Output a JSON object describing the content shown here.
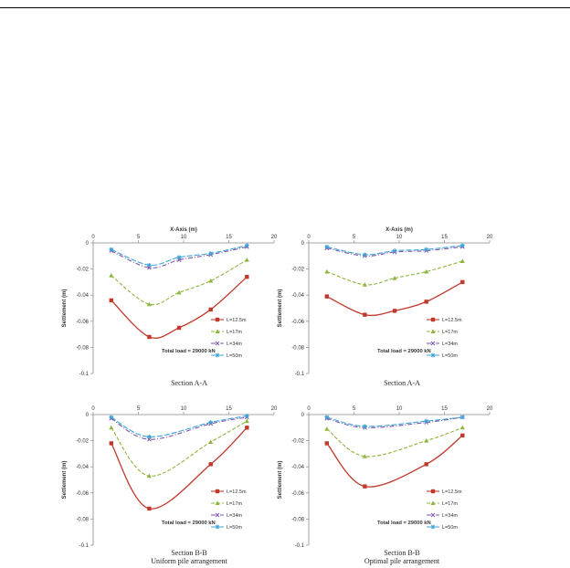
{
  "captions": {
    "p1": "Section A-A",
    "p2": "Section A-A",
    "p3": "Section B-B",
    "p4": "Section B-B",
    "left_sub": "Uniform pile arrangement",
    "right_sub": "Optimal pile arrangement"
  },
  "chart_data": [
    {
      "type": "line",
      "title": "",
      "xlabel": "X-Axis (m)",
      "ylabel": "Settlement (m)",
      "xlim": [
        0,
        20
      ],
      "ylim": [
        -0.1,
        0
      ],
      "xticks": [
        "0",
        "5",
        "10",
        "15",
        "20"
      ],
      "yticks": [
        "0",
        "-0.02",
        "-0.04",
        "-0.06",
        "-0.08",
        "-0.1"
      ],
      "annotation": "Total load = 29000 kN",
      "legend_position": "right",
      "series": [
        {
          "name": "L=12.5m",
          "color": "#c0392b",
          "x": [
            2,
            6.2,
            9.5,
            13,
            17
          ],
          "y": [
            -0.044,
            -0.072,
            -0.065,
            -0.051,
            -0.026
          ]
        },
        {
          "name": "L=17m",
          "color": "#8db53c",
          "x": [
            2,
            6.2,
            9.5,
            13,
            17
          ],
          "y": [
            -0.025,
            -0.047,
            -0.038,
            -0.029,
            -0.013
          ]
        },
        {
          "name": "L=34m",
          "color": "#7e57a8",
          "x": [
            2,
            6.2,
            9.5,
            13,
            17
          ],
          "y": [
            -0.006,
            -0.019,
            -0.013,
            -0.009,
            -0.003
          ]
        },
        {
          "name": "L=50m",
          "color": "#3fa3d8",
          "x": [
            2,
            6.2,
            9.5,
            13,
            17
          ],
          "y": [
            -0.005,
            -0.017,
            -0.011,
            -0.008,
            -0.002
          ]
        }
      ]
    },
    {
      "type": "line",
      "title": "",
      "xlabel": "X-Axis (m)",
      "ylabel": "Settlement (m)",
      "xlim": [
        0,
        20
      ],
      "ylim": [
        -0.1,
        0
      ],
      "xticks": [
        "0",
        "5",
        "10",
        "15",
        "20"
      ],
      "yticks": [
        "0",
        "-0.02",
        "-0.04",
        "-0.06",
        "-0.08",
        "-0.1"
      ],
      "annotation": "Total load = 29000 kN",
      "legend_position": "right",
      "series": [
        {
          "name": "L=12.5m",
          "color": "#c0392b",
          "x": [
            2,
            6.2,
            9.5,
            13,
            17
          ],
          "y": [
            -0.041,
            -0.055,
            -0.052,
            -0.045,
            -0.03
          ]
        },
        {
          "name": "L=17m",
          "color": "#8db53c",
          "x": [
            2,
            6.2,
            9.5,
            13,
            17
          ],
          "y": [
            -0.022,
            -0.032,
            -0.027,
            -0.022,
            -0.014
          ]
        },
        {
          "name": "L=34m",
          "color": "#7e57a8",
          "x": [
            2,
            6.2,
            9.5,
            13,
            17
          ],
          "y": [
            -0.004,
            -0.01,
            -0.007,
            -0.006,
            -0.003
          ]
        },
        {
          "name": "L=50m",
          "color": "#3fa3d8",
          "x": [
            2,
            6.2,
            9.5,
            13,
            17
          ],
          "y": [
            -0.003,
            -0.009,
            -0.006,
            -0.005,
            -0.002
          ]
        }
      ]
    },
    {
      "type": "line",
      "title": "",
      "xlabel": "",
      "ylabel": "Settlement (m)",
      "xlim": [
        0,
        20
      ],
      "ylim": [
        -0.1,
        0
      ],
      "xticks": [
        "0",
        "5",
        "10",
        "15",
        "20"
      ],
      "yticks": [
        "0",
        "-0.02",
        "-0.04",
        "-0.06",
        "-0.08",
        "-0.1"
      ],
      "annotation": "Total load = 29000 kN",
      "legend_position": "right",
      "series": [
        {
          "name": "L=12.5m",
          "color": "#c0392b",
          "x": [
            2,
            6.2,
            13,
            17
          ],
          "y": [
            -0.022,
            -0.072,
            -0.038,
            -0.01
          ]
        },
        {
          "name": "L=17m",
          "color": "#8db53c",
          "x": [
            2,
            6.2,
            13,
            17
          ],
          "y": [
            -0.01,
            -0.047,
            -0.021,
            -0.005
          ]
        },
        {
          "name": "L=34m",
          "color": "#7e57a8",
          "x": [
            2,
            6.2,
            13,
            17
          ],
          "y": [
            -0.003,
            -0.019,
            -0.007,
            -0.002
          ]
        },
        {
          "name": "L=50m",
          "color": "#3fa3d8",
          "x": [
            2,
            6.2,
            13,
            17
          ],
          "y": [
            -0.002,
            -0.017,
            -0.006,
            -0.001
          ]
        }
      ]
    },
    {
      "type": "line",
      "title": "",
      "xlabel": "",
      "ylabel": "Settlement (m)",
      "xlim": [
        0,
        20
      ],
      "ylim": [
        -0.1,
        0
      ],
      "xticks": [
        "0",
        "5",
        "10",
        "15",
        "20"
      ],
      "yticks": [
        "0",
        "-0.02",
        "-0.04",
        "-0.06",
        "-0.08",
        "-0.1"
      ],
      "annotation": "Total load = 29000 kN",
      "legend_position": "right",
      "series": [
        {
          "name": "L=12.5m",
          "color": "#c0392b",
          "x": [
            2,
            6.2,
            13,
            17
          ],
          "y": [
            -0.022,
            -0.055,
            -0.038,
            -0.016
          ]
        },
        {
          "name": "L=17m",
          "color": "#8db53c",
          "x": [
            2,
            6.2,
            13,
            17
          ],
          "y": [
            -0.011,
            -0.032,
            -0.02,
            -0.01
          ]
        },
        {
          "name": "L=34m",
          "color": "#7e57a8",
          "x": [
            2,
            6.2,
            13,
            17
          ],
          "y": [
            -0.003,
            -0.01,
            -0.006,
            -0.002
          ]
        },
        {
          "name": "L=50m",
          "color": "#3fa3d8",
          "x": [
            2,
            6.2,
            13,
            17
          ],
          "y": [
            -0.002,
            -0.009,
            -0.005,
            -0.002
          ]
        }
      ]
    }
  ]
}
